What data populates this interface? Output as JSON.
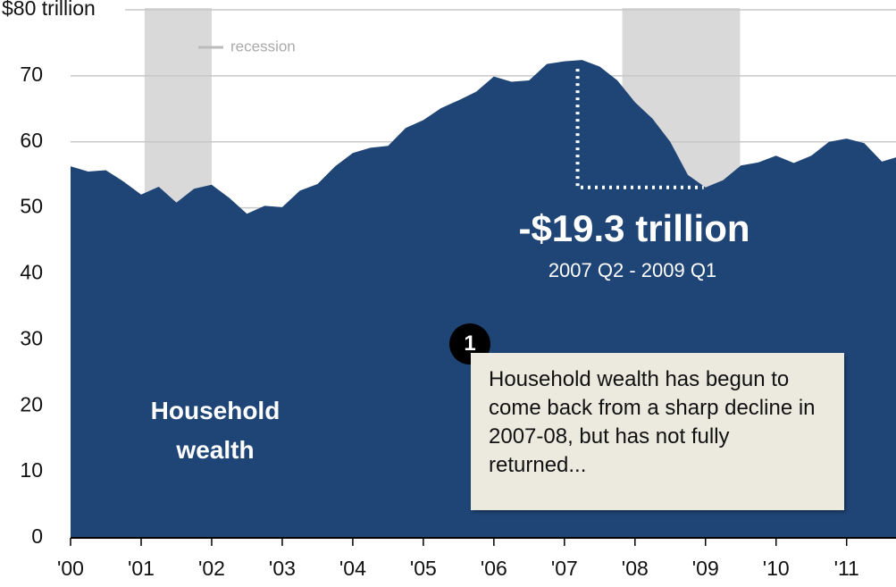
{
  "chart_data": {
    "type": "area",
    "x": [
      2000,
      2000.25,
      2000.5,
      2000.75,
      2001,
      2001.25,
      2001.5,
      2001.75,
      2002,
      2002.25,
      2002.5,
      2002.75,
      2003,
      2003.25,
      2003.5,
      2003.75,
      2004,
      2004.25,
      2004.5,
      2004.75,
      2005,
      2005.25,
      2005.5,
      2005.75,
      2006,
      2006.25,
      2006.5,
      2006.75,
      2007,
      2007.25,
      2007.5,
      2007.75,
      2008,
      2008.25,
      2008.5,
      2008.75,
      2009,
      2009.25,
      2009.5,
      2009.75,
      2010,
      2010.25,
      2010.5,
      2010.75,
      2011,
      2011.25,
      2011.5,
      2011.75
    ],
    "series": [
      {
        "name": "Household wealth",
        "color": "#1f4576",
        "values": [
          56.3,
          55.5,
          55.7,
          54.0,
          52.0,
          53.2,
          50.8,
          52.9,
          53.5,
          51.5,
          49.1,
          50.3,
          50.1,
          52.6,
          53.6,
          56.3,
          58.3,
          59.1,
          59.4,
          62.1,
          63.3,
          65.1,
          66.3,
          67.6,
          69.9,
          69.1,
          69.3,
          71.8,
          72.2,
          72.4,
          71.4,
          69.3,
          66.0,
          63.5,
          60.0,
          55.0,
          53.1,
          54.2,
          56.4,
          56.9,
          57.9,
          56.8,
          57.9,
          60.0,
          60.5,
          59.8,
          57.0,
          57.8
        ]
      }
    ],
    "xlim": [
      2000,
      2011.7
    ],
    "xticks": [
      {
        "value": 2000,
        "label": "'00"
      },
      {
        "value": 2001,
        "label": "'01"
      },
      {
        "value": 2002,
        "label": "'02"
      },
      {
        "value": 2003,
        "label": "'03"
      },
      {
        "value": 2004,
        "label": "'04"
      },
      {
        "value": 2005,
        "label": "'05"
      },
      {
        "value": 2006,
        "label": "'06"
      },
      {
        "value": 2007,
        "label": "'07"
      },
      {
        "value": 2008,
        "label": "'08"
      },
      {
        "value": 2009,
        "label": "'09"
      },
      {
        "value": 2010,
        "label": "'10"
      },
      {
        "value": 2011,
        "label": "'11"
      }
    ],
    "ylim": [
      0,
      80
    ],
    "yticks": [
      0,
      10,
      20,
      30,
      40,
      50,
      60,
      70,
      {
        "value": 80,
        "label": "$80 trillion"
      }
    ],
    "grid": true,
    "recessions": [
      [
        2001.05,
        2002.0
      ],
      [
        2007.82,
        2009.49
      ]
    ],
    "recession_label": "recession",
    "annotation": {
      "value": "-$19.3 trillion",
      "period": "2007 Q2 - 2009 Q1"
    },
    "callout": {
      "number": "1",
      "text": "Household wealth has begun to come back from a sharp decline in 2007-08, but has not fully returned..."
    }
  }
}
